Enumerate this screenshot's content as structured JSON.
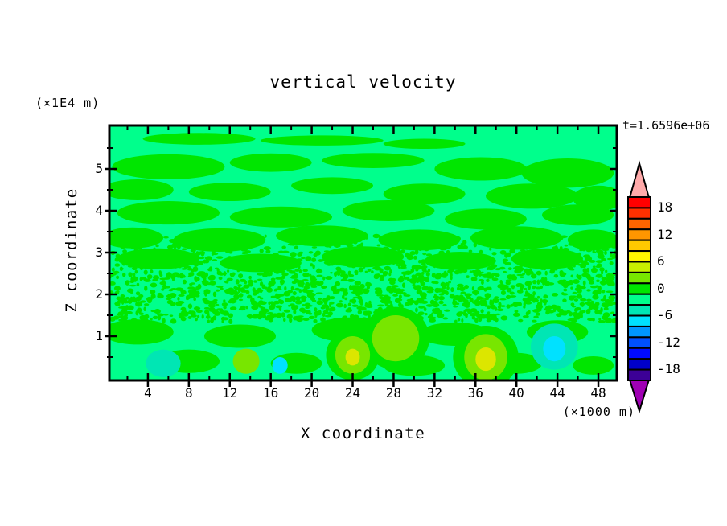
{
  "chart_data": {
    "type": "filled-contour",
    "title": "vertical velocity",
    "timestamp_label": "t=1.6596e+06",
    "xlabel": "X coordinate",
    "x_unit_note": "(×1000 m)",
    "x_ticks": [
      4,
      8,
      12,
      16,
      20,
      24,
      28,
      32,
      36,
      40,
      44,
      48
    ],
    "x_minor_ticks": [
      2,
      6,
      10,
      14,
      18,
      22,
      26,
      30,
      34,
      38,
      42,
      46
    ],
    "xlim": [
      0,
      49.8
    ],
    "ylabel": "Z coordinate",
    "y_unit_note": "(×1E4 m)",
    "y_ticks": [
      5,
      4,
      3,
      2,
      1
    ],
    "y_minor_ticks": [
      0.5,
      1.5,
      2.5,
      3.5,
      4.5,
      5.5
    ],
    "ylim": [
      0,
      6.05
    ],
    "colorbar": {
      "tick_labels": [
        "18",
        "12",
        "6",
        "0",
        "-6",
        "-12",
        "-18"
      ],
      "segment_colors": [
        "#FF0000",
        "#FF3000",
        "#FF6400",
        "#FF9600",
        "#FFC800",
        "#FFF600",
        "#C8F000",
        "#78E600",
        "#00E600",
        "#00FF8C",
        "#00E6B4",
        "#00E1FF",
        "#0096FF",
        "#0050FF",
        "#000AFF",
        "#0000C8",
        "#3C0096"
      ],
      "over_arrow_color": "#FFAAAA",
      "under_arrow_color": "#A000B4"
    },
    "field_colors": {
      "background": "#00FF8C",
      "green": "#00E600",
      "yellow_green": "#78E600",
      "yellow": "#DCE600",
      "teal": "#00E6B4",
      "cyan": "#00E1FF"
    },
    "bands": [
      {
        "x": 9,
        "z": 5.72,
        "rx": 5.5,
        "rz": 0.14
      },
      {
        "x": 21,
        "z": 5.68,
        "rx": 6,
        "rz": 0.12
      },
      {
        "x": 31,
        "z": 5.6,
        "rx": 4,
        "rz": 0.12
      },
      {
        "x": 6,
        "z": 5.05,
        "rx": 5.5,
        "rz": 0.3
      },
      {
        "x": 16,
        "z": 5.15,
        "rx": 4,
        "rz": 0.22
      },
      {
        "x": 26,
        "z": 5.2,
        "rx": 5,
        "rz": 0.18
      },
      {
        "x": 36.5,
        "z": 5.0,
        "rx": 4.5,
        "rz": 0.28
      },
      {
        "x": 45,
        "z": 4.9,
        "rx": 4.5,
        "rz": 0.35
      },
      {
        "x": 3,
        "z": 4.5,
        "rx": 3.5,
        "rz": 0.25
      },
      {
        "x": 12,
        "z": 4.45,
        "rx": 4,
        "rz": 0.22
      },
      {
        "x": 22,
        "z": 4.6,
        "rx": 4,
        "rz": 0.2
      },
      {
        "x": 31,
        "z": 4.4,
        "rx": 4,
        "rz": 0.25
      },
      {
        "x": 41.5,
        "z": 4.35,
        "rx": 4.5,
        "rz": 0.3
      },
      {
        "x": 48,
        "z": 4.3,
        "rx": 2.5,
        "rz": 0.3
      },
      {
        "x": 6,
        "z": 3.95,
        "rx": 5,
        "rz": 0.28
      },
      {
        "x": 17,
        "z": 3.85,
        "rx": 5,
        "rz": 0.25
      },
      {
        "x": 27.5,
        "z": 4.0,
        "rx": 4.5,
        "rz": 0.25
      },
      {
        "x": 37,
        "z": 3.8,
        "rx": 4,
        "rz": 0.25
      },
      {
        "x": 46,
        "z": 3.9,
        "rx": 3.5,
        "rz": 0.25
      },
      {
        "x": 2.5,
        "z": 3.35,
        "rx": 3,
        "rz": 0.25
      },
      {
        "x": 11,
        "z": 3.3,
        "rx": 4.5,
        "rz": 0.28
      },
      {
        "x": 21,
        "z": 3.4,
        "rx": 4.5,
        "rz": 0.25
      },
      {
        "x": 30.5,
        "z": 3.3,
        "rx": 4,
        "rz": 0.25
      },
      {
        "x": 40,
        "z": 3.35,
        "rx": 4.5,
        "rz": 0.28
      },
      {
        "x": 47.5,
        "z": 3.3,
        "rx": 2.5,
        "rz": 0.25
      },
      {
        "x": 5,
        "z": 2.85,
        "rx": 4,
        "rz": 0.25
      },
      {
        "x": 15,
        "z": 2.75,
        "rx": 4,
        "rz": 0.22
      },
      {
        "x": 25,
        "z": 2.9,
        "rx": 4,
        "rz": 0.25
      },
      {
        "x": 34.5,
        "z": 2.8,
        "rx": 3.5,
        "rz": 0.22
      },
      {
        "x": 43,
        "z": 2.85,
        "rx": 3.5,
        "rz": 0.25
      },
      {
        "x": 3,
        "z": 1.1,
        "rx": 3.5,
        "rz": 0.3
      },
      {
        "x": 13,
        "z": 1.0,
        "rx": 3.5,
        "rz": 0.28
      },
      {
        "x": 24,
        "z": 1.15,
        "rx": 4,
        "rz": 0.3
      },
      {
        "x": 34,
        "z": 1.05,
        "rx": 3.5,
        "rz": 0.28
      },
      {
        "x": 44,
        "z": 1.1,
        "rx": 3,
        "rz": 0.28
      },
      {
        "x": 8,
        "z": 0.4,
        "rx": 3,
        "rz": 0.28
      },
      {
        "x": 18.5,
        "z": 0.35,
        "rx": 2.5,
        "rz": 0.25
      },
      {
        "x": 30,
        "z": 0.3,
        "rx": 3,
        "rz": 0.25
      },
      {
        "x": 40,
        "z": 0.35,
        "rx": 2.5,
        "rz": 0.25
      },
      {
        "x": 47.5,
        "z": 0.3,
        "rx": 2,
        "rz": 0.22
      }
    ],
    "speckle_band": {
      "x_min": 0.2,
      "x_max": 49.6,
      "z_min": 1.35,
      "z_max": 3.0,
      "count": 1500,
      "seed": 7
    },
    "speckle_band_upper": {
      "x_min": 0.2,
      "x_max": 49.6,
      "z_min": 3.0,
      "z_max": 3.4,
      "count": 220,
      "seed": 13
    },
    "blobs": [
      {
        "x": 24,
        "z": 0.55,
        "rx": 2.6,
        "rz": 0.6,
        "color": "green"
      },
      {
        "x": 28.2,
        "z": 0.95,
        "rx": 3.3,
        "rz": 0.75,
        "color": "green"
      },
      {
        "x": 37,
        "z": 0.5,
        "rx": 3.2,
        "rz": 0.75,
        "color": "green"
      },
      {
        "x": 5.5,
        "z": 0.35,
        "rx": 1.7,
        "rz": 0.33,
        "color": "teal"
      },
      {
        "x": 13.6,
        "z": 0.4,
        "rx": 1.3,
        "rz": 0.3,
        "color": "yellow_green"
      },
      {
        "x": 16.9,
        "z": 0.3,
        "rx": 0.75,
        "rz": 0.2,
        "color": "cyan"
      },
      {
        "x": 24,
        "z": 0.55,
        "rx": 1.7,
        "rz": 0.45,
        "color": "yellow_green"
      },
      {
        "x": 24,
        "z": 0.5,
        "rx": 0.7,
        "rz": 0.2,
        "color": "yellow"
      },
      {
        "x": 28.2,
        "z": 0.95,
        "rx": 2.3,
        "rz": 0.55,
        "color": "yellow_green"
      },
      {
        "x": 37,
        "z": 0.5,
        "rx": 2.1,
        "rz": 0.55,
        "color": "yellow_green"
      },
      {
        "x": 37,
        "z": 0.45,
        "rx": 1.0,
        "rz": 0.28,
        "color": "yellow"
      },
      {
        "x": 43.7,
        "z": 0.75,
        "rx": 2.3,
        "rz": 0.55,
        "color": "teal"
      },
      {
        "x": 43.7,
        "z": 0.7,
        "rx": 1.1,
        "rz": 0.3,
        "color": "cyan"
      }
    ]
  }
}
